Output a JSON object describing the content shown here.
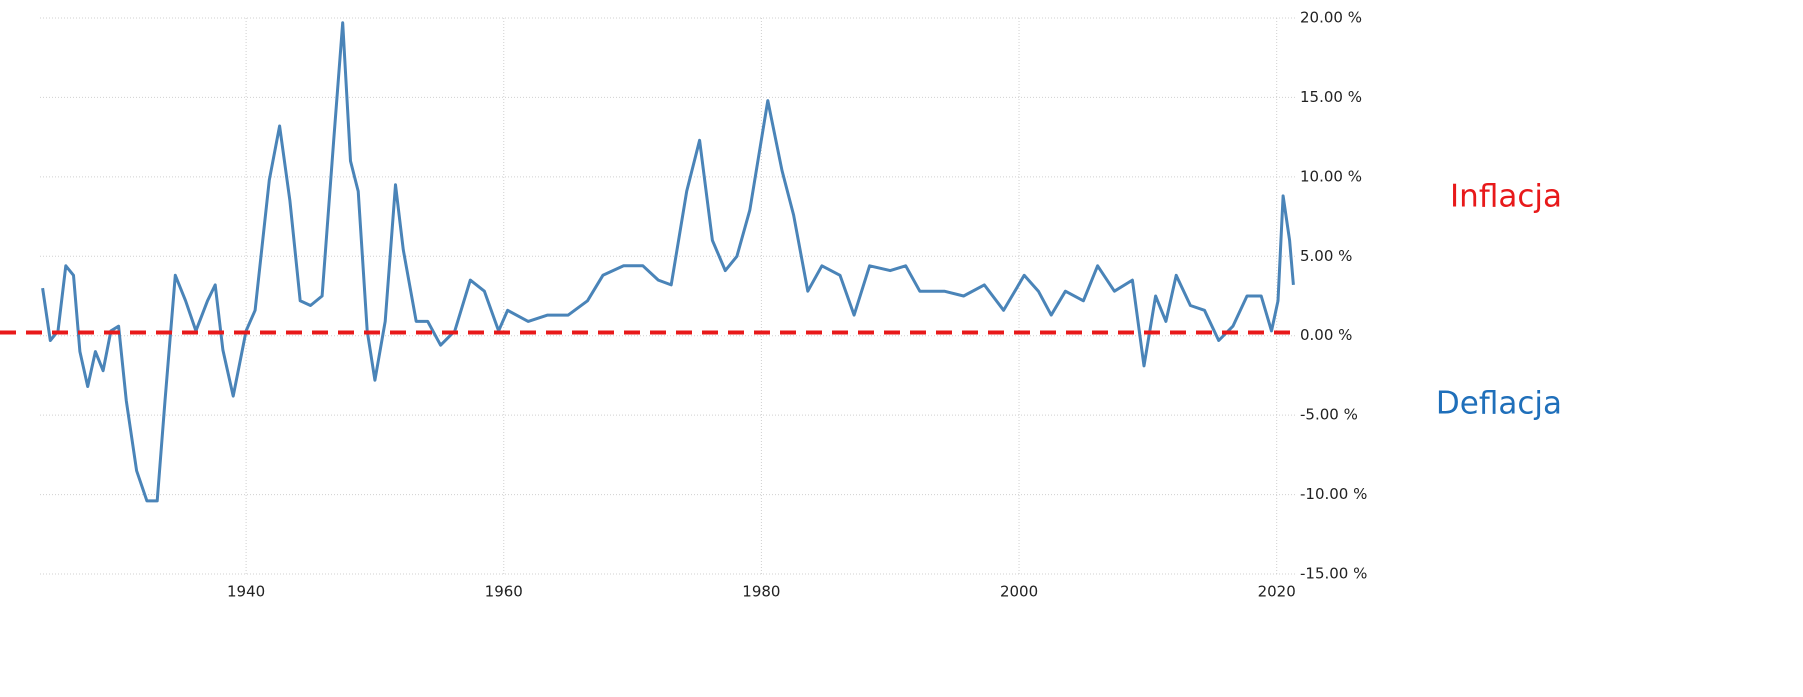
{
  "chart_data": {
    "type": "line",
    "x": [
      1924.2,
      1924.8,
      1925.4,
      1926,
      1926.6,
      1927.1,
      1927.7,
      1928.3,
      1928.9,
      1929.5,
      1930.1,
      1930.7,
      1931.5,
      1932.3,
      1933.1,
      1933.7,
      1934.5,
      1935.3,
      1936.1,
      1937,
      1937.6,
      1938.2,
      1939,
      1940,
      1940.7,
      1941.8,
      1942.6,
      1943.4,
      1944.2,
      1945,
      1945.9,
      1946.8,
      1947.5,
      1948.1,
      1948.7,
      1949.4,
      1950,
      1950.8,
      1951.6,
      1952.2,
      1953.2,
      1954.1,
      1955.1,
      1956.2,
      1957.4,
      1958.5,
      1959.6,
      1960.3,
      1961.9,
      1963.4,
      1965,
      1966.5,
      1967.7,
      1969.3,
      1970.8,
      1972,
      1973,
      1974.2,
      1975.2,
      1976.2,
      1977.2,
      1978.1,
      1979.1,
      1980.5,
      1981.6,
      1982.5,
      1983.6,
      1984.7,
      1986.1,
      1987.2,
      1988.4,
      1990,
      1991.2,
      1992.3,
      1994.2,
      1995.7,
      1997.3,
      1998.8,
      2000.4,
      2001.5,
      2002.5,
      2003.6,
      2005,
      2006.1,
      2007.4,
      2008.8,
      2009.7,
      2010.6,
      2011.4,
      2012.2,
      2013.3,
      2014.4,
      2015.5,
      2016.6,
      2017.7,
      2018.8,
      2019.6,
      2020.1,
      2020.5,
      2021,
      2021.3
    ],
    "series": [
      {
        "color": "#4a84b8",
        "values": [
          3.0,
          -0.3,
          0.3,
          4.4,
          3.8,
          -1,
          -3.2,
          -1,
          -2.2,
          0.3,
          0.6,
          -4.1,
          -8.5,
          -10.4,
          -10.4,
          -4.1,
          3.8,
          2.2,
          0.3,
          2.2,
          3.2,
          -0.9,
          -3.8,
          0.3,
          1.6,
          9.8,
          13.2,
          8.5,
          2.2,
          1.9,
          2.5,
          12.3,
          19.7,
          11,
          9.1,
          0.3,
          -2.8,
          0.9,
          9.5,
          5.4,
          0.9,
          0.9,
          -0.6,
          0.3,
          3.5,
          2.8,
          0.3,
          1.6,
          0.9,
          1.3,
          1.3,
          2.2,
          3.8,
          4.4,
          4.4,
          3.5,
          3.2,
          9.1,
          12.3,
          6,
          4.1,
          5,
          7.9,
          14.8,
          10.4,
          7.6,
          2.8,
          4.4,
          3.8,
          1.3,
          4.4,
          4.1,
          4.4,
          2.8,
          2.8,
          2.5,
          3.2,
          1.6,
          3.8,
          2.8,
          1.3,
          2.8,
          2.2,
          4.4,
          2.8,
          3.5,
          -1.9,
          2.5,
          0.9,
          3.8,
          1.9,
          1.6,
          -0.3,
          0.6,
          2.5,
          2.5,
          0.3,
          2.2,
          8.8,
          6,
          3.2
        ]
      }
    ],
    "xlim": [
      1924,
      2021.5
    ],
    "xticks": [
      1940,
      1960,
      1980,
      2000,
      2020
    ],
    "ylim": [
      -15,
      20
    ],
    "yticks": [
      {
        "value": -15,
        "label": "-15.00 %"
      },
      {
        "value": -10,
        "label": "-10.00 %"
      },
      {
        "value": -5,
        "label": "-5.00 %"
      },
      {
        "value": 0,
        "label": "0.00 %"
      },
      {
        "value": 5,
        "label": "5.00 %"
      },
      {
        "value": 10,
        "label": "10.00 %"
      },
      {
        "value": 15,
        "label": "15.00 %"
      },
      {
        "value": 20,
        "label": "20.00 %"
      }
    ],
    "grid": true,
    "reference_line": {
      "value": 0.2,
      "color": "#e8191a"
    },
    "annotations": [
      {
        "text": "Inflacja",
        "color": "#e8191a"
      },
      {
        "text": "Deflacja",
        "color": "#1f6fba"
      }
    ]
  }
}
